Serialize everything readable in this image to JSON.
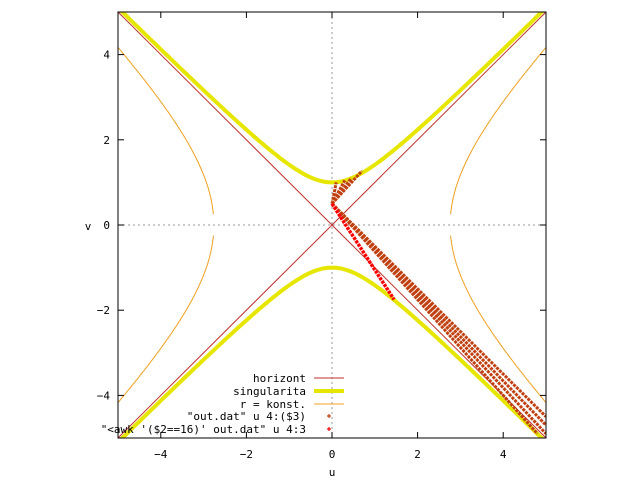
{
  "chart_data": {
    "type": "line",
    "title": "",
    "xlabel": "u",
    "ylabel": "v",
    "xlim": [
      -5,
      5
    ],
    "ylim": [
      -5,
      5
    ],
    "x_ticks": [
      -4,
      -2,
      0,
      2,
      4
    ],
    "y_ticks": [
      -4,
      -2,
      0,
      2,
      4
    ],
    "x_tick_labels": [
      "−4",
      "−2",
      "0",
      "2",
      "4"
    ],
    "y_tick_labels": [
      "−4",
      "−2",
      "0",
      "2",
      "4"
    ],
    "zero_axes": true,
    "grid": false,
    "legend_position": "bottom-center",
    "colors": {
      "horizont": "#c0302c",
      "singularita": "#e6e600",
      "r_konst": "#f0a020",
      "out": "#c04010",
      "awk": "#ff0000"
    },
    "series": [
      {
        "name": "horizont",
        "kind": "lines",
        "segments": [
          [
            [
              -5,
              -5
            ],
            [
              5,
              5
            ]
          ],
          [
            [
              -5,
              5
            ],
            [
              5,
              -5
            ]
          ]
        ]
      },
      {
        "name": "singularita",
        "kind": "hyperbola",
        "equation": "v^2 - u^2 = 1",
        "vertex_v": 1
      },
      {
        "name": "r = konst.",
        "kind": "hyperbola",
        "equation": "u^2 - v^2 = 7.6",
        "vertex_u": 2.76,
        "gap_v": [
          -0.25,
          0.25
        ]
      },
      {
        "name": "\"out.dat\"      u 4:($3)",
        "kind": "points",
        "bands": [
          {
            "from": [
              0,
              0.5
            ],
            "to": [
              5,
              -4.5
            ]
          },
          {
            "from": [
              0,
              0.5
            ],
            "to": [
              5,
              -4.7
            ]
          },
          {
            "from": [
              0,
              0.5
            ],
            "to": [
              5,
              -4.9
            ]
          },
          {
            "from": [
              0,
              0.5
            ],
            "to": [
              4.8,
              -4.9
            ]
          },
          {
            "from": [
              0,
              0.5
            ],
            "to": [
              0.7,
              1.27
            ]
          },
          {
            "from": [
              0,
              0.5
            ],
            "to": [
              0.45,
              1.1
            ]
          },
          {
            "from": [
              0,
              0.5
            ],
            "to": [
              0.3,
              1.05
            ]
          },
          {
            "from": [
              0,
              0.5
            ],
            "to": [
              0.1,
              1.0
            ]
          }
        ]
      },
      {
        "name": "\"<awk '($2==16)' out.dat\" u 4:3",
        "kind": "points",
        "bands": [
          {
            "from": [
              0,
              0.5
            ],
            "to": [
              1.45,
              -1.75
            ]
          }
        ]
      }
    ]
  }
}
